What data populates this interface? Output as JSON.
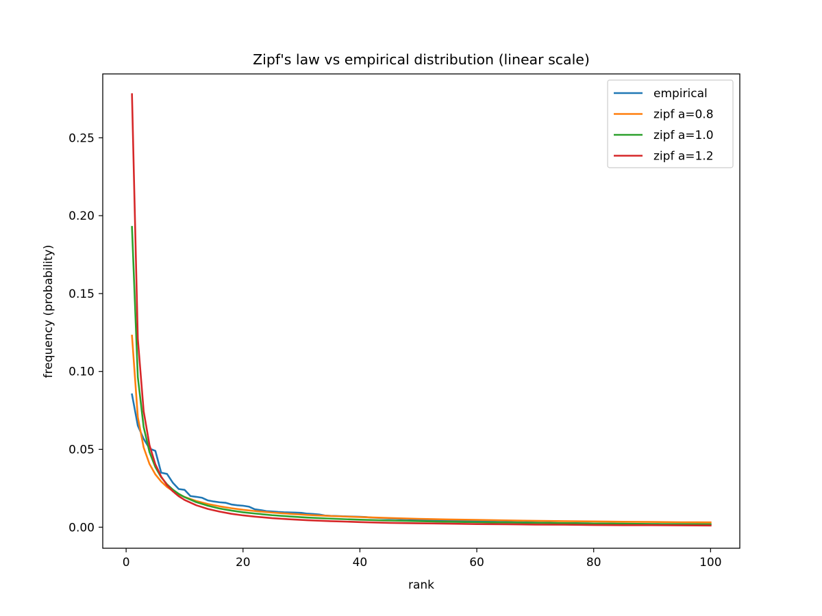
{
  "chart_data": {
    "type": "line",
    "title": "Zipf's law vs empirical distribution (linear scale)",
    "xlabel": "rank",
    "ylabel": "frequency (probability)",
    "xlim": [
      -4,
      105
    ],
    "ylim": [
      -0.0135,
      0.291
    ],
    "xticks": [
      0,
      20,
      40,
      60,
      80,
      100
    ],
    "yticks": [
      0.0,
      0.05,
      0.1,
      0.15,
      0.2,
      0.25
    ],
    "xtick_labels": [
      "0",
      "20",
      "40",
      "60",
      "80",
      "100"
    ],
    "ytick_labels": [
      "0.00",
      "0.05",
      "0.10",
      "0.15",
      "0.20",
      "0.25"
    ],
    "grid": false,
    "legend_position": "top-right",
    "series": [
      {
        "name": "empirical",
        "color": "#1f77b4",
        "x": [
          1,
          2,
          3,
          4,
          5,
          6,
          7,
          8,
          9,
          10,
          11,
          12,
          13,
          14,
          15,
          16,
          17,
          18,
          19,
          20,
          21,
          22,
          23,
          24,
          25,
          26,
          27,
          28,
          29,
          30,
          31,
          32,
          33,
          34,
          35,
          36,
          37,
          38,
          39,
          40,
          41,
          42,
          43,
          44,
          45,
          46,
          47,
          48,
          49,
          50,
          51,
          52,
          53,
          54,
          55,
          56,
          57,
          58,
          59,
          60,
          61,
          62,
          63,
          64,
          65,
          66,
          67,
          68,
          69,
          70,
          71,
          72,
          73,
          74,
          75,
          76,
          77,
          78,
          79,
          80,
          81,
          82,
          83,
          84,
          85,
          86,
          87,
          88,
          89,
          90,
          91,
          92,
          93,
          94,
          95,
          96,
          97,
          98,
          99,
          100
        ],
        "y": [
          0.0853,
          0.0652,
          0.0567,
          0.0505,
          0.049,
          0.035,
          0.0342,
          0.0285,
          0.0245,
          0.024,
          0.02,
          0.0195,
          0.0189,
          0.0172,
          0.0165,
          0.016,
          0.0157,
          0.0146,
          0.0141,
          0.0138,
          0.0132,
          0.0115,
          0.011,
          0.0103,
          0.0101,
          0.0098,
          0.0096,
          0.0095,
          0.0094,
          0.0092,
          0.0087,
          0.0085,
          0.0082,
          0.0075,
          0.0073,
          0.0072,
          0.007,
          0.0069,
          0.0068,
          0.0067,
          0.0065,
          0.0062,
          0.006,
          0.0058,
          0.0056,
          0.0055,
          0.0053,
          0.0052,
          0.005,
          0.0049,
          0.0048,
          0.0047,
          0.0045,
          0.0044,
          0.0043,
          0.0042,
          0.0041,
          0.004,
          0.0039,
          0.0038,
          0.0037,
          0.0036,
          0.0035,
          0.0034,
          0.0034,
          0.0033,
          0.0032,
          0.0031,
          0.0031,
          0.003,
          0.0029,
          0.0029,
          0.0028,
          0.0027,
          0.0027,
          0.0026,
          0.0026,
          0.0025,
          0.0025,
          0.0024,
          0.0024,
          0.0023,
          0.0023,
          0.0022,
          0.0022,
          0.0022,
          0.0021,
          0.0021,
          0.002,
          0.002,
          0.002,
          0.0019,
          0.0019,
          0.0019,
          0.0018,
          0.0018,
          0.0018,
          0.0017,
          0.0017,
          0.0017
        ]
      },
      {
        "name": "zipf a=0.8",
        "color": "#ff7f0e",
        "x": [
          1,
          2,
          3,
          4,
          5,
          6,
          7,
          8,
          9,
          10,
          12,
          14,
          16,
          18,
          20,
          22,
          25,
          28,
          31,
          35,
          40,
          45,
          50,
          55,
          60,
          65,
          70,
          75,
          80,
          85,
          90,
          95,
          100
        ],
        "y": [
          0.123,
          0.0707,
          0.0512,
          0.0406,
          0.0339,
          0.0293,
          0.0258,
          0.0232,
          0.0211,
          0.0194,
          0.0168,
          0.0149,
          0.0134,
          0.0122,
          0.0112,
          0.0104,
          0.0094,
          0.0086,
          0.0079,
          0.0072,
          0.0065,
          0.0059,
          0.0054,
          0.005,
          0.0047,
          0.0044,
          0.0041,
          0.0039,
          0.0037,
          0.0035,
          0.0034,
          0.0032,
          0.0031
        ]
      },
      {
        "name": "zipf a=1.0",
        "color": "#2ca02c",
        "x": [
          1,
          2,
          3,
          4,
          5,
          6,
          7,
          8,
          9,
          10,
          12,
          14,
          16,
          18,
          20,
          22,
          25,
          28,
          31,
          35,
          40,
          45,
          50,
          55,
          60,
          65,
          70,
          75,
          80,
          85,
          90,
          95,
          100
        ],
        "y": [
          0.1928,
          0.0964,
          0.0643,
          0.0482,
          0.0386,
          0.0321,
          0.0275,
          0.0241,
          0.0214,
          0.0193,
          0.0161,
          0.0138,
          0.012,
          0.0107,
          0.0096,
          0.0088,
          0.0077,
          0.0069,
          0.0062,
          0.0055,
          0.0048,
          0.0043,
          0.0039,
          0.0035,
          0.0032,
          0.003,
          0.0028,
          0.0026,
          0.0024,
          0.0023,
          0.0021,
          0.002,
          0.0019
        ]
      },
      {
        "name": "zipf a=1.2",
        "color": "#d62728",
        "x": [
          1,
          2,
          3,
          4,
          5,
          6,
          7,
          8,
          9,
          10,
          12,
          14,
          16,
          18,
          20,
          22,
          25,
          28,
          31,
          35,
          40,
          45,
          50,
          55,
          60,
          65,
          70,
          75,
          80,
          85,
          90,
          95,
          100
        ],
        "y": [
          0.278,
          0.121,
          0.0744,
          0.0527,
          0.0404,
          0.0325,
          0.027,
          0.023,
          0.0199,
          0.0175,
          0.0141,
          0.0117,
          0.01,
          0.0086,
          0.0076,
          0.0068,
          0.0058,
          0.0051,
          0.0045,
          0.0039,
          0.0033,
          0.0028,
          0.0025,
          0.0023,
          0.002,
          0.0019,
          0.0017,
          0.0016,
          0.0014,
          0.0013,
          0.0013,
          0.0012,
          0.0011
        ]
      }
    ]
  }
}
